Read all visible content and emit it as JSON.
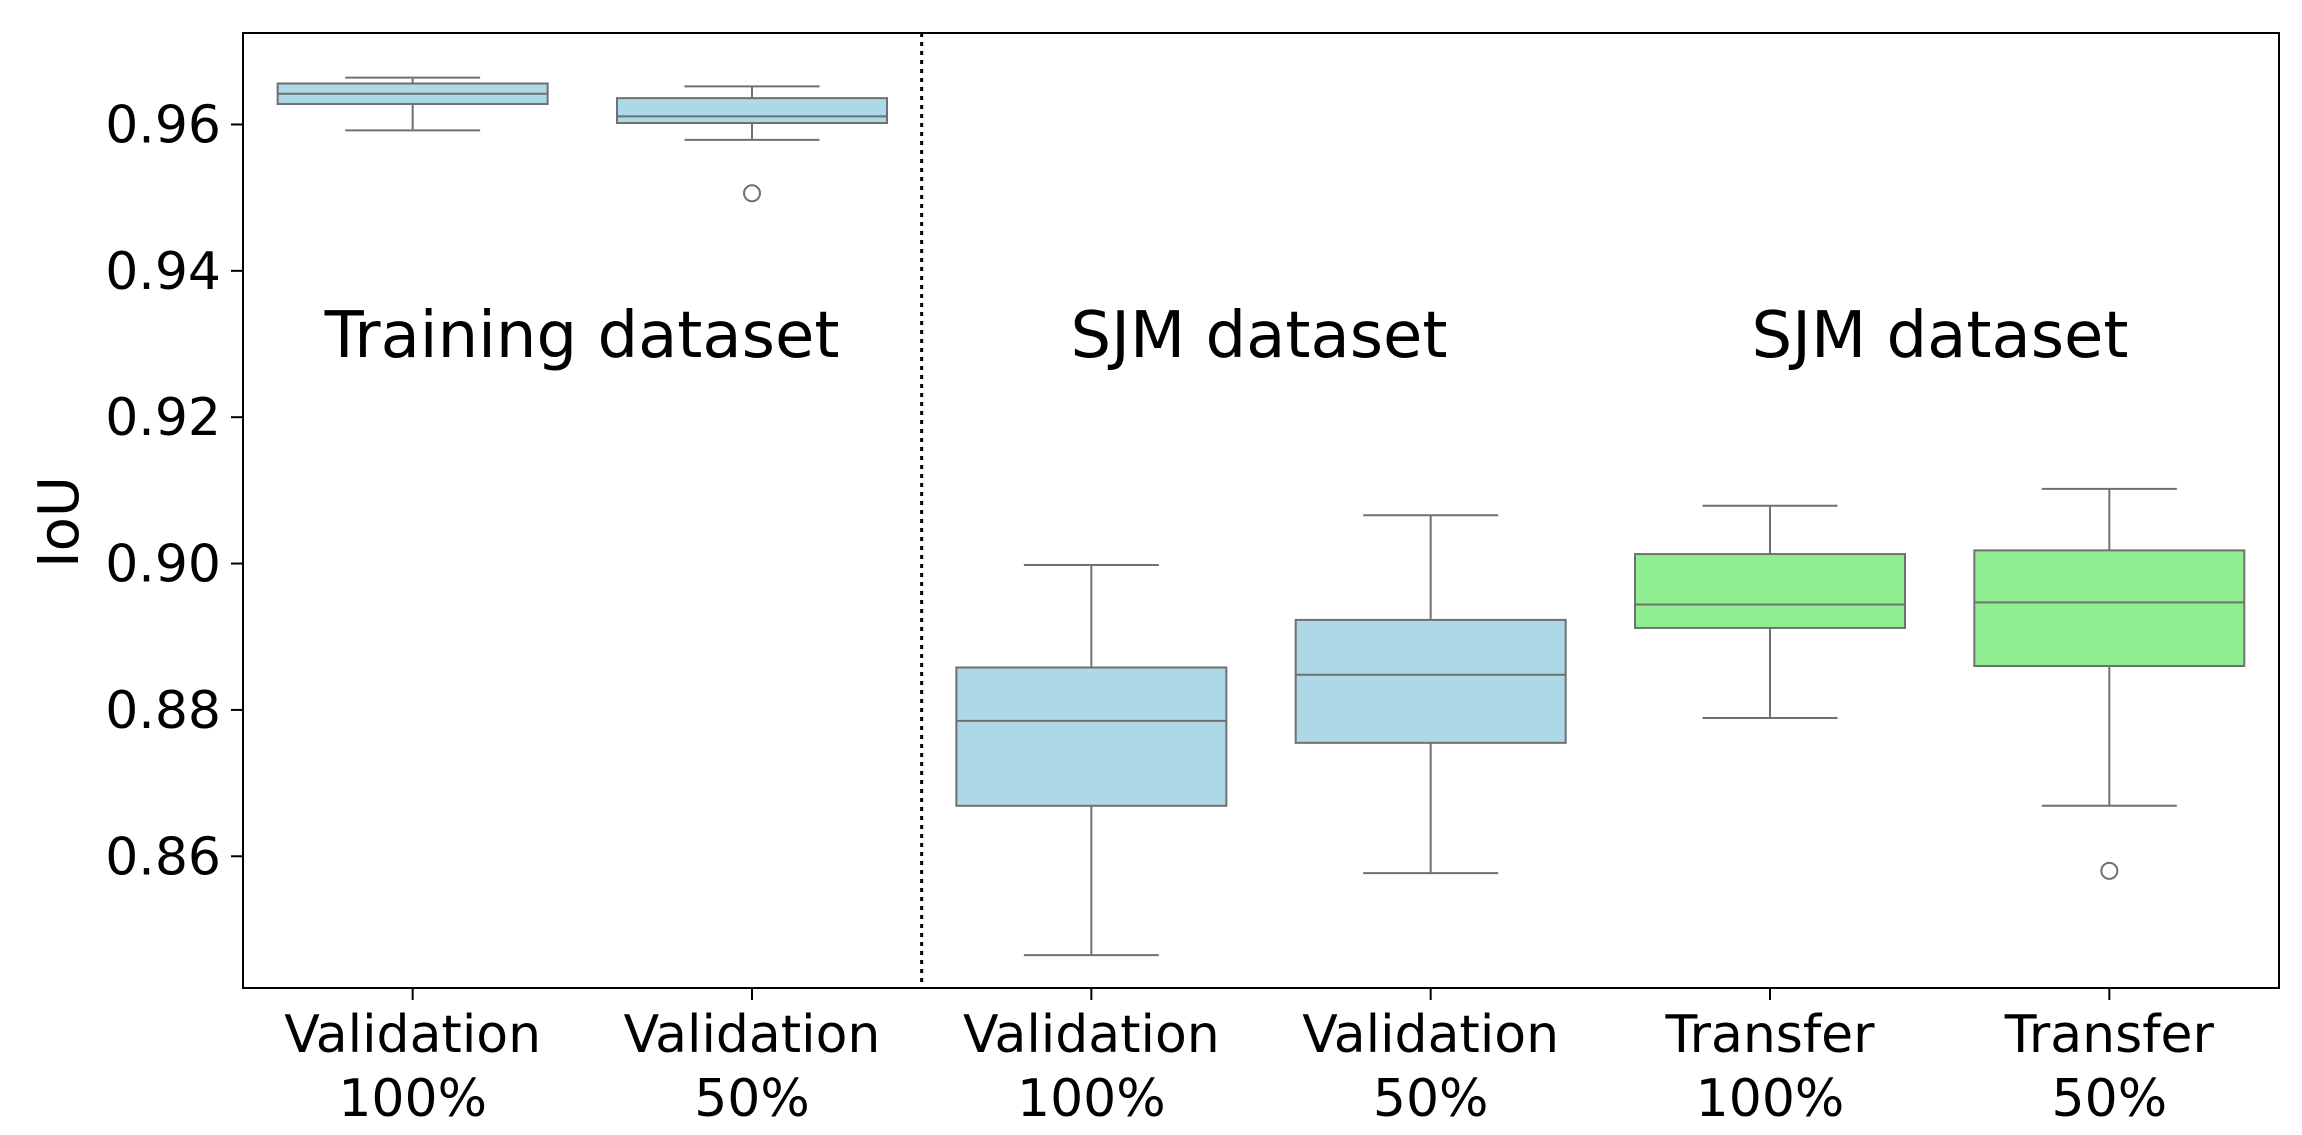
{
  "chart_data": {
    "type": "box",
    "ylabel": "IoU",
    "ylim": [
      0.842,
      0.9725
    ],
    "yticks": [
      "0.86",
      "0.88",
      "0.90",
      "0.92",
      "0.94",
      "0.96"
    ],
    "categories": [
      [
        "Validation",
        "100%"
      ],
      [
        "Validation",
        "50%"
      ],
      [
        "Validation",
        "100%"
      ],
      [
        "Validation",
        "50%"
      ],
      [
        "Transfer",
        "100%"
      ],
      [
        "Transfer",
        "50%"
      ]
    ],
    "annotations": [
      "Training dataset",
      "SJM dataset",
      "SJM dataset"
    ],
    "colors": {
      "validation": "#add8e6",
      "transfer": "#90ee90",
      "box_edge": "#707070"
    },
    "boxes": [
      {
        "category_index": 0,
        "color": "validation",
        "whisker_low": 0.9592,
        "q1": 0.9628,
        "median": 0.9642,
        "q3": 0.9656,
        "whisker_high": 0.9664,
        "outliers": []
      },
      {
        "category_index": 1,
        "color": "validation",
        "whisker_low": 0.9579,
        "q1": 0.9602,
        "median": 0.9611,
        "q3": 0.9636,
        "whisker_high": 0.9652,
        "outliers": [
          0.9506
        ]
      },
      {
        "category_index": 2,
        "color": "validation",
        "whisker_low": 0.8465,
        "q1": 0.8669,
        "median": 0.8785,
        "q3": 0.8858,
        "whisker_high": 0.8998,
        "outliers": []
      },
      {
        "category_index": 3,
        "color": "validation",
        "whisker_low": 0.8577,
        "q1": 0.8755,
        "median": 0.8848,
        "q3": 0.8923,
        "whisker_high": 0.9066,
        "outliers": []
      },
      {
        "category_index": 4,
        "color": "transfer",
        "whisker_low": 0.8789,
        "q1": 0.8912,
        "median": 0.8944,
        "q3": 0.9013,
        "whisker_high": 0.9079,
        "outliers": []
      },
      {
        "category_index": 5,
        "color": "transfer",
        "whisker_low": 0.8669,
        "q1": 0.886,
        "median": 0.8947,
        "q3": 0.9018,
        "whisker_high": 0.9102,
        "outliers": [
          0.858
        ]
      }
    ],
    "separator_after_category": 1,
    "grid": false,
    "legend": "none"
  }
}
